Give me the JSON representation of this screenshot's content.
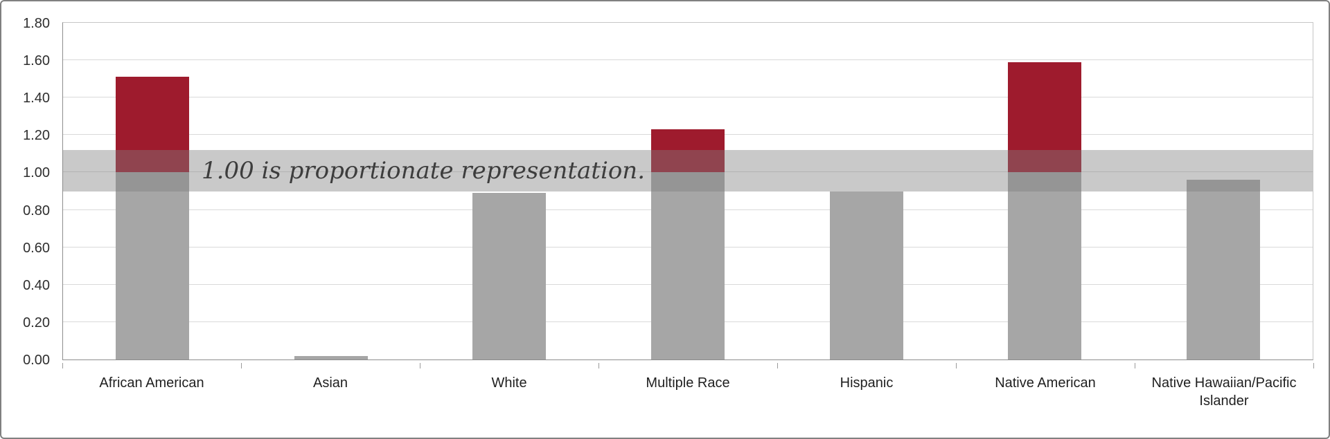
{
  "chart_data": {
    "type": "bar",
    "title": "",
    "xlabel": "",
    "ylabel": "",
    "categories": [
      "African American",
      "Asian",
      "White",
      "Multiple Race",
      "Hispanic",
      "Native American",
      "Native Hawaiian/Pacific Islander"
    ],
    "values": [
      1.51,
      0.02,
      0.89,
      1.23,
      0.9,
      1.59,
      0.96
    ],
    "ylim": [
      0,
      1.8
    ],
    "ytick_step": 0.2,
    "ytick_labels": [
      "0.00",
      "0.20",
      "0.40",
      "0.60",
      "0.80",
      "1.00",
      "1.20",
      "1.40",
      "1.60",
      "1.80"
    ],
    "grid": true,
    "legend": "none",
    "threshold": 1.0,
    "annotation": {
      "text": "1.00 is proportionate representation.",
      "band_from": 0.9,
      "band_to": 1.12
    },
    "colors": {
      "bar_gray": "#a6a6a6",
      "bar_red": "#9e1b2d",
      "band": "rgba(127,127,127,0.42)",
      "gridline": "#d9d9d9"
    }
  }
}
